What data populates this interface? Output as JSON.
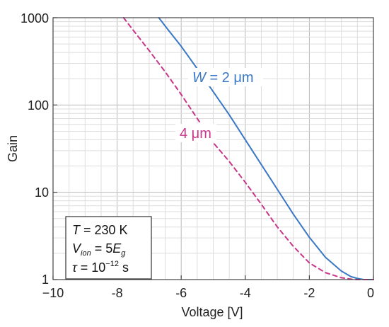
{
  "chart_data": {
    "type": "line",
    "xlabel": "Voltage [V]",
    "ylabel": "Gain",
    "xlim": [
      -10,
      0
    ],
    "ylim": [
      1,
      1000
    ],
    "yscale": "log",
    "grid": true,
    "x_ticks": [
      -10,
      -8,
      -6,
      -4,
      -2,
      0
    ],
    "x_tick_labels": [
      "−10",
      "-8",
      "-6",
      "-4",
      "-2",
      "0"
    ],
    "y_ticks": [
      1,
      10,
      100,
      1000
    ],
    "y_tick_labels": [
      "1",
      "10",
      "100",
      "1000"
    ],
    "series": [
      {
        "name": "W = 2 μm",
        "color": "#3a78c5",
        "style": "solid",
        "x": [
          -6.7,
          -6.4,
          -6.0,
          -5.5,
          -5.0,
          -4.5,
          -4.0,
          -3.5,
          -3.0,
          -2.5,
          -2.0,
          -1.5,
          -1.0,
          -0.7,
          -0.5,
          -0.3,
          0.0
        ],
        "y": [
          1000,
          720,
          470,
          260,
          142,
          77,
          40,
          20.8,
          10.8,
          5.6,
          3.05,
          1.8,
          1.25,
          1.08,
          1.03,
          1.0,
          1.0
        ]
      },
      {
        "name": "4 μm",
        "color": "#c8368a",
        "style": "dashed",
        "x": [
          -7.8,
          -7.5,
          -7.0,
          -6.5,
          -6.0,
          -5.5,
          -5.0,
          -4.5,
          -4.0,
          -3.5,
          -3.0,
          -2.5,
          -2.0,
          -1.5,
          -1.0,
          -0.6,
          -0.3,
          0.0
        ],
        "y": [
          1000,
          720,
          420,
          240,
          132,
          70,
          37,
          22.5,
          13,
          7.3,
          4.0,
          2.4,
          1.55,
          1.2,
          1.05,
          1.0,
          1.0,
          1.0
        ]
      }
    ],
    "annotations": [
      {
        "label_prefix": "W",
        "label_rest": " = 2 μm",
        "color": "#3a78c5"
      },
      {
        "label": "4 μm",
        "color": "#c8368a"
      }
    ],
    "parameters_box": {
      "T_symbol": "T",
      "T_text": " = 230 K",
      "V_symbol": "V",
      "V_sub": "ion",
      "V_eq": " = 5",
      "V_E": "E",
      "V_E_sub": "g",
      "tau_symbol": "τ",
      "tau_eq": " = 10",
      "tau_exp": "−12",
      "tau_unit": " s"
    }
  }
}
